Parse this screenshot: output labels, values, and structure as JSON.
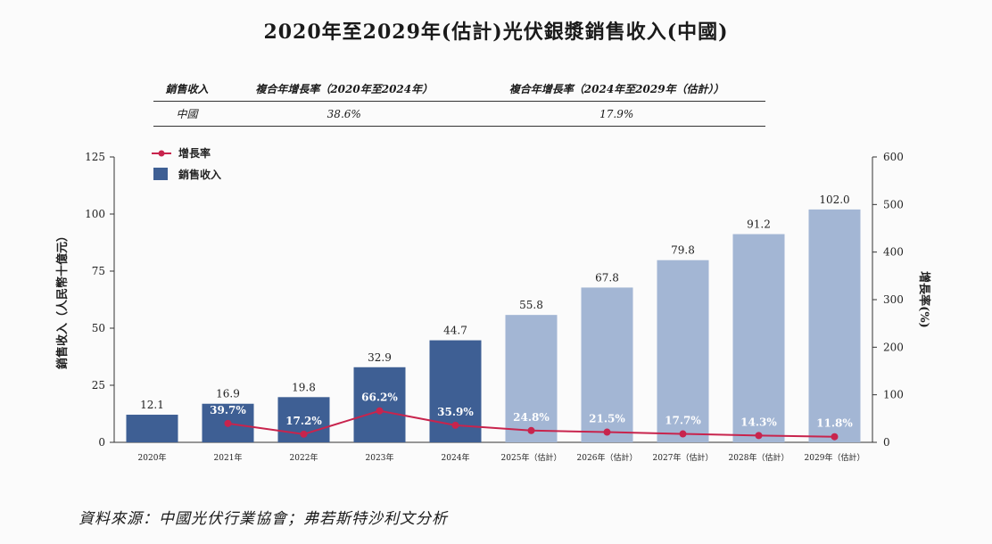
{
  "title": "2020年至2029年(估計)光伏銀漿銷售收入(中國)",
  "cagr_table": {
    "headers": [
      "銷售收入",
      "複合年增長率（2020年至2024年）",
      "複合年增長率（2024年至2029年（估計））"
    ],
    "rows": [
      [
        "中國",
        "38.6%",
        "17.9%"
      ]
    ]
  },
  "source": "資料來源：中國光伏行業協會；弗若斯特沙利文分析",
  "chart_data": {
    "type": "bar",
    "categories": [
      "2020年",
      "2021年",
      "2022年",
      "2023年",
      "2024年",
      "2025年（估計）",
      "2026年（估計）",
      "2027年（估計）",
      "2028年（估計）",
      "2029年（估計）"
    ],
    "ylabel": "銷售收入（人民幣十億元）",
    "y2label": "增長率(%)",
    "ylim": [
      0,
      125
    ],
    "yticks": [
      0,
      25,
      50,
      75,
      100,
      125
    ],
    "y2lim": [
      0,
      600
    ],
    "y2ticks": [
      0,
      100,
      200,
      300,
      400,
      500,
      600
    ],
    "legend": {
      "placement": "top-left",
      "line_label": "增長率",
      "bar_label": "銷售收入"
    },
    "series": [
      {
        "name": "銷售收入",
        "type": "bar",
        "values": [
          12.1,
          16.9,
          19.8,
          32.9,
          44.7,
          55.8,
          67.8,
          79.8,
          91.2,
          102.0
        ],
        "labels": [
          "12.1",
          "16.9",
          "19.8",
          "32.9",
          "44.7",
          "55.8",
          "67.8",
          "79.8",
          "91.2",
          "102.0"
        ]
      },
      {
        "name": "增長率",
        "type": "line",
        "axis": "right",
        "values": [
          null,
          39.7,
          17.2,
          66.2,
          35.9,
          24.8,
          21.5,
          17.7,
          14.3,
          11.8
        ],
        "labels": [
          "",
          "39.7%",
          "17.2%",
          "66.2%",
          "35.9%",
          "24.8%",
          "21.5%",
          "17.7%",
          "14.3%",
          "11.8%"
        ]
      }
    ],
    "colors": {
      "actual_bar": "#3e5f94",
      "estimate_bar": "#a3b6d4",
      "line": "#c8244d"
    }
  }
}
